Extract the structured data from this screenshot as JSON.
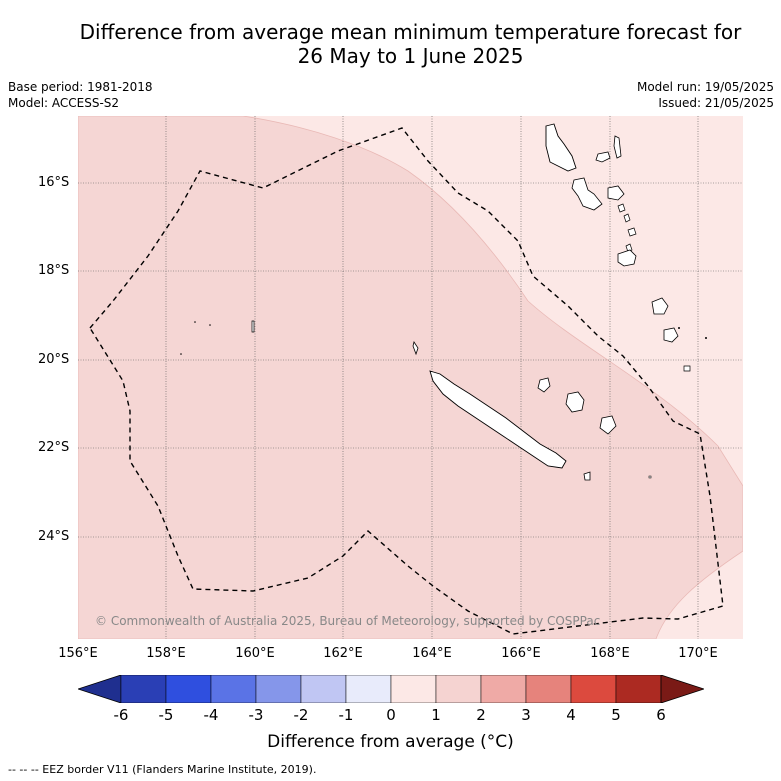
{
  "title_line1": "Difference from average mean minimum temperature forecast for",
  "title_line2": "26 May to 1 June 2025",
  "base_period": "Base period: 1981-2018",
  "model": "Model: ACCESS-S2",
  "model_run": "Model run: 19/05/2025",
  "issued": "Issued: 21/05/2025",
  "lat_labels": [
    "16°S",
    "18°S",
    "20°S",
    "22°S",
    "24°S"
  ],
  "lon_labels": [
    "156°E",
    "158°E",
    "160°E",
    "162°E",
    "164°E",
    "166°E",
    "168°E",
    "170°E"
  ],
  "copyright": "© Commonwealth of Australia 2025, Bureau of Meteorology, supported by COSPPac",
  "colorbar": {
    "ticks": [
      "-6",
      "-5",
      "-4",
      "-3",
      "-2",
      "-1",
      "0",
      "1",
      "2",
      "3",
      "4",
      "5",
      "6"
    ],
    "colors": [
      "#1f2f8f",
      "#2a3fb5",
      "#2f4fdf",
      "#5a73e6",
      "#8596ea",
      "#c0c6f3",
      "#e8ebfb",
      "#fce8e6",
      "#f5d3d1",
      "#efaaa6",
      "#e6837c",
      "#dc4a3e",
      "#ac2a22",
      "#7a1a16"
    ],
    "label": "Difference from average (°C)"
  },
  "map_colors": {
    "band_0_1": "#fce8e6",
    "band_1_2": "#f5d6d4"
  },
  "footnote": "--  --  -- EEZ border V11 (Flanders Marine Institute, 2019)."
}
